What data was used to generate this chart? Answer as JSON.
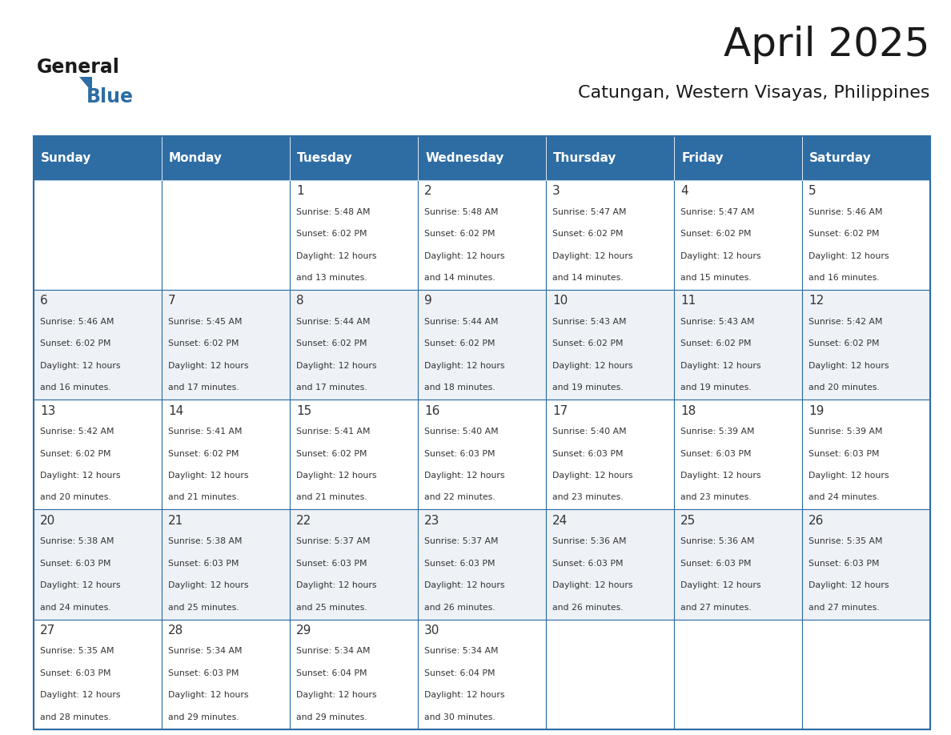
{
  "title": "April 2025",
  "subtitle": "Catungan, Western Visayas, Philippines",
  "header_bg": "#2E6DA4",
  "header_text_color": "#FFFFFF",
  "cell_bg_even": "#FFFFFF",
  "cell_bg_odd": "#EEF2F7",
  "border_color": "#2E6DA4",
  "day_names": [
    "Sunday",
    "Monday",
    "Tuesday",
    "Wednesday",
    "Thursday",
    "Friday",
    "Saturday"
  ],
  "title_color": "#1a1a1a",
  "subtitle_color": "#1a1a1a",
  "cell_text_color": "#333333",
  "logo_general_color": "#1a1a1a",
  "logo_blue_color": "#2E6DA4",
  "calendar": [
    [
      {
        "day": 0,
        "sunrise": "",
        "sunset": "",
        "daylight": ""
      },
      {
        "day": 0,
        "sunrise": "",
        "sunset": "",
        "daylight": ""
      },
      {
        "day": 1,
        "sunrise": "5:48 AM",
        "sunset": "6:02 PM",
        "daylight": "12 hours and 13 minutes."
      },
      {
        "day": 2,
        "sunrise": "5:48 AM",
        "sunset": "6:02 PM",
        "daylight": "12 hours and 14 minutes."
      },
      {
        "day": 3,
        "sunrise": "5:47 AM",
        "sunset": "6:02 PM",
        "daylight": "12 hours and 14 minutes."
      },
      {
        "day": 4,
        "sunrise": "5:47 AM",
        "sunset": "6:02 PM",
        "daylight": "12 hours and 15 minutes."
      },
      {
        "day": 5,
        "sunrise": "5:46 AM",
        "sunset": "6:02 PM",
        "daylight": "12 hours and 16 minutes."
      }
    ],
    [
      {
        "day": 6,
        "sunrise": "5:46 AM",
        "sunset": "6:02 PM",
        "daylight": "12 hours and 16 minutes."
      },
      {
        "day": 7,
        "sunrise": "5:45 AM",
        "sunset": "6:02 PM",
        "daylight": "12 hours and 17 minutes."
      },
      {
        "day": 8,
        "sunrise": "5:44 AM",
        "sunset": "6:02 PM",
        "daylight": "12 hours and 17 minutes."
      },
      {
        "day": 9,
        "sunrise": "5:44 AM",
        "sunset": "6:02 PM",
        "daylight": "12 hours and 18 minutes."
      },
      {
        "day": 10,
        "sunrise": "5:43 AM",
        "sunset": "6:02 PM",
        "daylight": "12 hours and 19 minutes."
      },
      {
        "day": 11,
        "sunrise": "5:43 AM",
        "sunset": "6:02 PM",
        "daylight": "12 hours and 19 minutes."
      },
      {
        "day": 12,
        "sunrise": "5:42 AM",
        "sunset": "6:02 PM",
        "daylight": "12 hours and 20 minutes."
      }
    ],
    [
      {
        "day": 13,
        "sunrise": "5:42 AM",
        "sunset": "6:02 PM",
        "daylight": "12 hours and 20 minutes."
      },
      {
        "day": 14,
        "sunrise": "5:41 AM",
        "sunset": "6:02 PM",
        "daylight": "12 hours and 21 minutes."
      },
      {
        "day": 15,
        "sunrise": "5:41 AM",
        "sunset": "6:02 PM",
        "daylight": "12 hours and 21 minutes."
      },
      {
        "day": 16,
        "sunrise": "5:40 AM",
        "sunset": "6:03 PM",
        "daylight": "12 hours and 22 minutes."
      },
      {
        "day": 17,
        "sunrise": "5:40 AM",
        "sunset": "6:03 PM",
        "daylight": "12 hours and 23 minutes."
      },
      {
        "day": 18,
        "sunrise": "5:39 AM",
        "sunset": "6:03 PM",
        "daylight": "12 hours and 23 minutes."
      },
      {
        "day": 19,
        "sunrise": "5:39 AM",
        "sunset": "6:03 PM",
        "daylight": "12 hours and 24 minutes."
      }
    ],
    [
      {
        "day": 20,
        "sunrise": "5:38 AM",
        "sunset": "6:03 PM",
        "daylight": "12 hours and 24 minutes."
      },
      {
        "day": 21,
        "sunrise": "5:38 AM",
        "sunset": "6:03 PM",
        "daylight": "12 hours and 25 minutes."
      },
      {
        "day": 22,
        "sunrise": "5:37 AM",
        "sunset": "6:03 PM",
        "daylight": "12 hours and 25 minutes."
      },
      {
        "day": 23,
        "sunrise": "5:37 AM",
        "sunset": "6:03 PM",
        "daylight": "12 hours and 26 minutes."
      },
      {
        "day": 24,
        "sunrise": "5:36 AM",
        "sunset": "6:03 PM",
        "daylight": "12 hours and 26 minutes."
      },
      {
        "day": 25,
        "sunrise": "5:36 AM",
        "sunset": "6:03 PM",
        "daylight": "12 hours and 27 minutes."
      },
      {
        "day": 26,
        "sunrise": "5:35 AM",
        "sunset": "6:03 PM",
        "daylight": "12 hours and 27 minutes."
      }
    ],
    [
      {
        "day": 27,
        "sunrise": "5:35 AM",
        "sunset": "6:03 PM",
        "daylight": "12 hours and 28 minutes."
      },
      {
        "day": 28,
        "sunrise": "5:34 AM",
        "sunset": "6:03 PM",
        "daylight": "12 hours and 29 minutes."
      },
      {
        "day": 29,
        "sunrise": "5:34 AM",
        "sunset": "6:04 PM",
        "daylight": "12 hours and 29 minutes."
      },
      {
        "day": 30,
        "sunrise": "5:34 AM",
        "sunset": "6:04 PM",
        "daylight": "12 hours and 30 minutes."
      },
      {
        "day": 0,
        "sunrise": "",
        "sunset": "",
        "daylight": ""
      },
      {
        "day": 0,
        "sunrise": "",
        "sunset": "",
        "daylight": ""
      },
      {
        "day": 0,
        "sunrise": "",
        "sunset": "",
        "daylight": ""
      }
    ]
  ]
}
